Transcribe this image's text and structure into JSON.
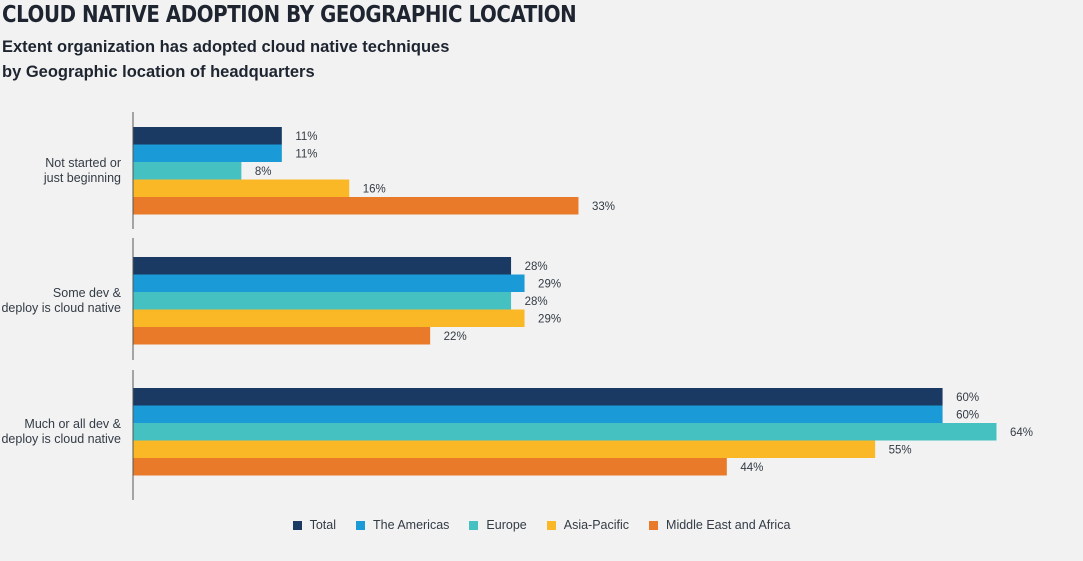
{
  "title": "CLOUD NATIVE ADOPTION BY GEOGRAPHIC LOCATION",
  "subtitle_line1": "Extent organization has adopted cloud native techniques",
  "subtitle_line2": "by Geographic location of headquarters",
  "chart_data": {
    "type": "bar",
    "orientation": "horizontal",
    "categories": [
      [
        "Not started or",
        "just beginning"
      ],
      [
        "Some dev &",
        "deploy is cloud native"
      ],
      [
        "Much or all dev &",
        "deploy is cloud native"
      ]
    ],
    "series": [
      {
        "name": "Total",
        "color": "#1b3a63",
        "values": [
          11,
          28,
          60
        ]
      },
      {
        "name": "The Americas",
        "color": "#1a9ad6",
        "values": [
          11,
          29,
          60
        ]
      },
      {
        "name": "Europe",
        "color": "#45c1c2",
        "values": [
          8,
          28,
          64
        ]
      },
      {
        "name": "Asia-Pacific",
        "color": "#fbb826",
        "values": [
          16,
          29,
          55
        ]
      },
      {
        "name": "Middle East and Africa",
        "color": "#e97a2a",
        "values": [
          33,
          22,
          44
        ]
      }
    ],
    "value_suffix": "%",
    "xlim": [
      0,
      66
    ],
    "grid": false,
    "legend_position": "bottom"
  }
}
